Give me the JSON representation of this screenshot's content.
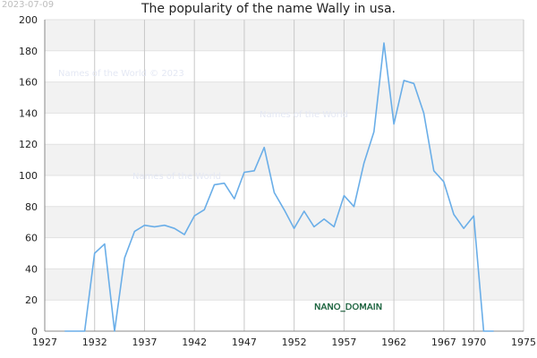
{
  "stamp": "2023-07-09",
  "watermarks": [
    "Names of the World © 2023",
    "Names of the World",
    "Names of the World"
  ],
  "nano_label": "NANO_DOMAIN",
  "colors": {
    "line": "#6aaee8",
    "band": "#f2f2f2",
    "grid": "#c8c8c8"
  },
  "chart_data": {
    "type": "line",
    "title": "The popularity of the name Wally in usa.",
    "xlabel": "",
    "ylabel": "",
    "xlim": [
      1927,
      1975
    ],
    "ylim": [
      0,
      200
    ],
    "xticks": [
      1927,
      1932,
      1937,
      1942,
      1947,
      1952,
      1957,
      1962,
      1967,
      1970,
      1975
    ],
    "yticks": [
      0,
      20,
      40,
      60,
      80,
      100,
      120,
      140,
      160,
      180,
      200
    ],
    "grid": true,
    "x": [
      1929,
      1930,
      1931,
      1932,
      1933,
      1934,
      1935,
      1936,
      1937,
      1938,
      1939,
      1940,
      1941,
      1942,
      1943,
      1944,
      1945,
      1946,
      1947,
      1948,
      1949,
      1950,
      1951,
      1952,
      1953,
      1954,
      1955,
      1956,
      1957,
      1958,
      1959,
      1960,
      1961,
      1962,
      1963,
      1964,
      1965,
      1966,
      1967,
      1968,
      1969,
      1970,
      1971,
      1972
    ],
    "y": [
      0,
      0,
      0,
      50,
      56,
      0,
      47,
      64,
      68,
      67,
      68,
      66,
      62,
      74,
      78,
      94,
      95,
      85,
      102,
      103,
      118,
      89,
      78,
      66,
      77,
      67,
      72,
      67,
      87,
      80,
      108,
      128,
      185,
      133,
      161,
      159,
      140,
      103,
      96,
      75,
      66,
      74,
      0,
      0
    ]
  }
}
